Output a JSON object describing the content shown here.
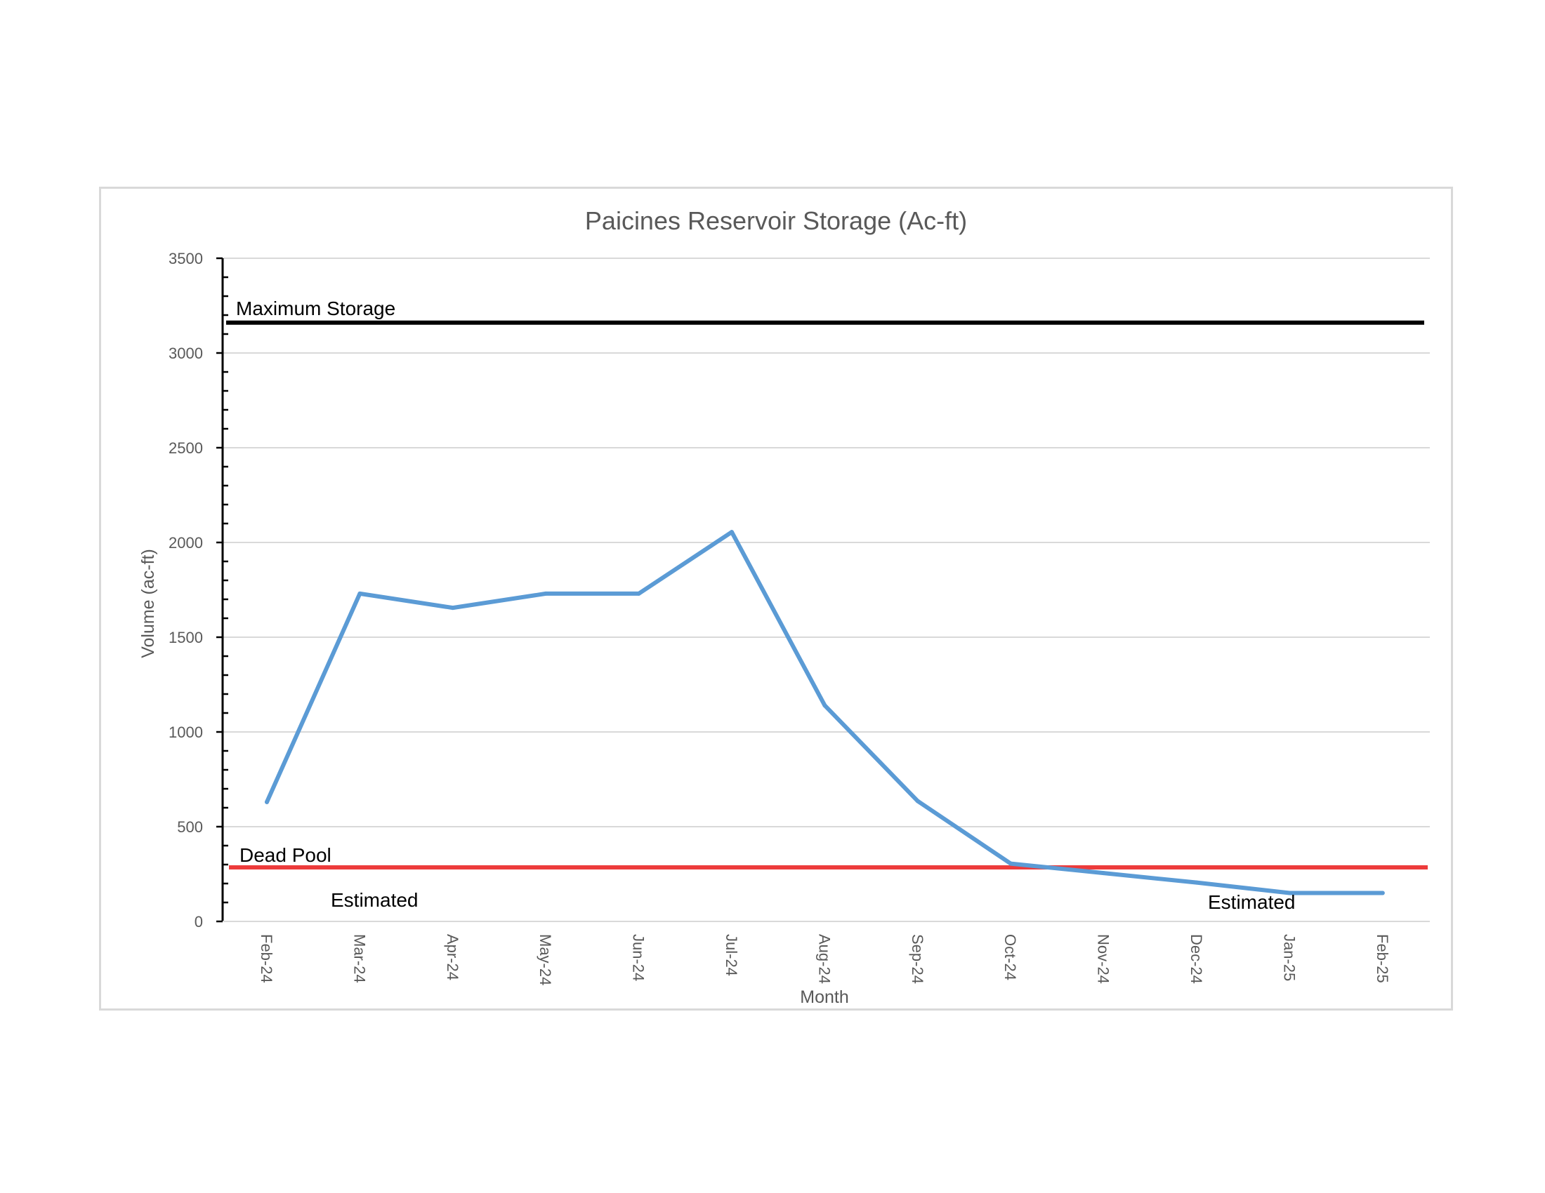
{
  "chart_data": {
    "type": "line",
    "title": "Paicines Reservoir Storage (Ac-ft)",
    "xlabel": "Month",
    "ylabel": "Volume (ac-ft)",
    "ylim": [
      0,
      3500
    ],
    "yticks": [
      "0",
      "500",
      "1000",
      "1500",
      "2000",
      "2500",
      "3000",
      "3500"
    ],
    "ytick_values": [
      0,
      500,
      1000,
      1500,
      2000,
      2500,
      3000,
      3500
    ],
    "grid": true,
    "categories": [
      "Feb-24",
      "Mar-24",
      "Apr-24",
      "May-24",
      "Jun-24",
      "Jul-24",
      "Aug-24",
      "Sep-24",
      "Oct-24",
      "Nov-24",
      "Dec-24",
      "Jan-25",
      "Feb-25"
    ],
    "series": [
      {
        "color": "#5b9bd5",
        "values": [
          630,
          1730,
          1655,
          1730,
          1730,
          2055,
          1140,
          635,
          305,
          255,
          205,
          150,
          150
        ]
      }
    ],
    "reference_lines": [
      {
        "label": "Maximum Storage",
        "value": 3160,
        "color": "#000000"
      },
      {
        "label": "Dead Pool",
        "value": 285,
        "color": "#ed3b3b"
      }
    ],
    "annotations": [
      {
        "text": "Estimated",
        "near_category": "Mar-24"
      },
      {
        "text": "Estimated",
        "near_category": "Jan-25"
      }
    ]
  }
}
